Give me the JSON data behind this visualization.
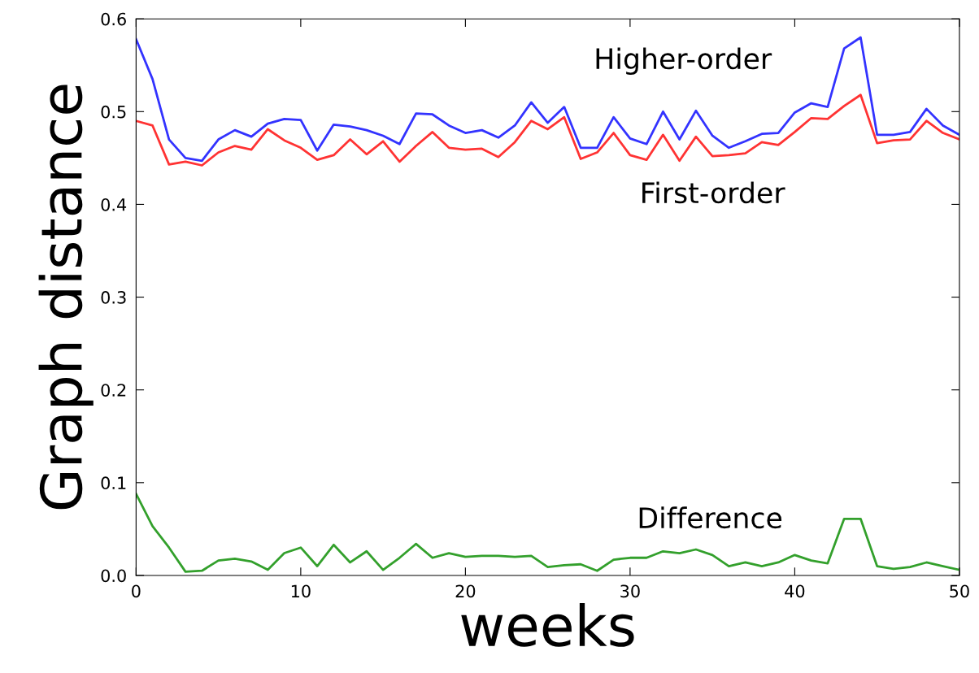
{
  "chart_data": {
    "type": "line",
    "xlabel": "weeks",
    "ylabel": "Graph distance",
    "x": [
      0,
      1,
      2,
      3,
      4,
      5,
      6,
      7,
      8,
      9,
      10,
      11,
      12,
      13,
      14,
      15,
      16,
      17,
      18,
      19,
      20,
      21,
      22,
      23,
      24,
      25,
      26,
      27,
      28,
      29,
      30,
      31,
      32,
      33,
      34,
      35,
      36,
      37,
      38,
      39,
      40,
      41,
      42,
      43,
      44,
      45,
      46,
      47,
      48,
      49,
      50
    ],
    "series": [
      {
        "name": "Higher-order",
        "color": "#3333ff",
        "values": [
          0.578,
          0.535,
          0.47,
          0.45,
          0.447,
          0.47,
          0.48,
          0.473,
          0.487,
          0.492,
          0.491,
          0.458,
          0.486,
          0.484,
          0.48,
          0.474,
          0.465,
          0.498,
          0.497,
          0.485,
          0.477,
          0.48,
          0.472,
          0.485,
          0.51,
          0.488,
          0.505,
          0.461,
          0.461,
          0.494,
          0.471,
          0.465,
          0.5,
          0.47,
          0.501,
          0.474,
          0.461,
          0.468,
          0.476,
          0.477,
          0.499,
          0.509,
          0.505,
          0.568,
          0.58,
          0.475,
          0.475,
          0.478,
          0.503,
          0.485,
          0.475
        ]
      },
      {
        "name": "First-order",
        "color": "#ff3333",
        "values": [
          0.49,
          0.485,
          0.443,
          0.446,
          0.442,
          0.456,
          0.463,
          0.459,
          0.481,
          0.469,
          0.461,
          0.448,
          0.453,
          0.47,
          0.454,
          0.468,
          0.446,
          0.463,
          0.478,
          0.461,
          0.459,
          0.46,
          0.451,
          0.467,
          0.49,
          0.481,
          0.494,
          0.449,
          0.456,
          0.477,
          0.453,
          0.448,
          0.475,
          0.447,
          0.473,
          0.452,
          0.453,
          0.455,
          0.467,
          0.464,
          0.478,
          0.493,
          0.492,
          0.506,
          0.518,
          0.466,
          0.469,
          0.47,
          0.49,
          0.477,
          0.47
        ]
      },
      {
        "name": "Difference",
        "color": "#33a02c",
        "values": [
          0.088,
          0.053,
          0.03,
          0.004,
          0.005,
          0.016,
          0.018,
          0.015,
          0.006,
          0.024,
          0.03,
          0.01,
          0.033,
          0.014,
          0.026,
          0.006,
          0.019,
          0.034,
          0.019,
          0.024,
          0.02,
          0.021,
          0.021,
          0.02,
          0.021,
          0.009,
          0.011,
          0.012,
          0.005,
          0.017,
          0.019,
          0.019,
          0.026,
          0.024,
          0.028,
          0.022,
          0.01,
          0.014,
          0.01,
          0.014,
          0.022,
          0.016,
          0.013,
          0.061,
          0.061,
          0.01,
          0.007,
          0.009,
          0.014,
          0.01,
          0.006
        ]
      }
    ],
    "xlim": [
      0,
      50
    ],
    "xticks": [
      0,
      10,
      20,
      30,
      40,
      50
    ],
    "ylim": [
      0,
      0.6
    ],
    "yticks": [
      {
        "value": 0,
        "label": "0.0"
      },
      0.1,
      0.2,
      0.3,
      0.4,
      0.5,
      0.6
    ],
    "grid": false,
    "legend": false
  }
}
